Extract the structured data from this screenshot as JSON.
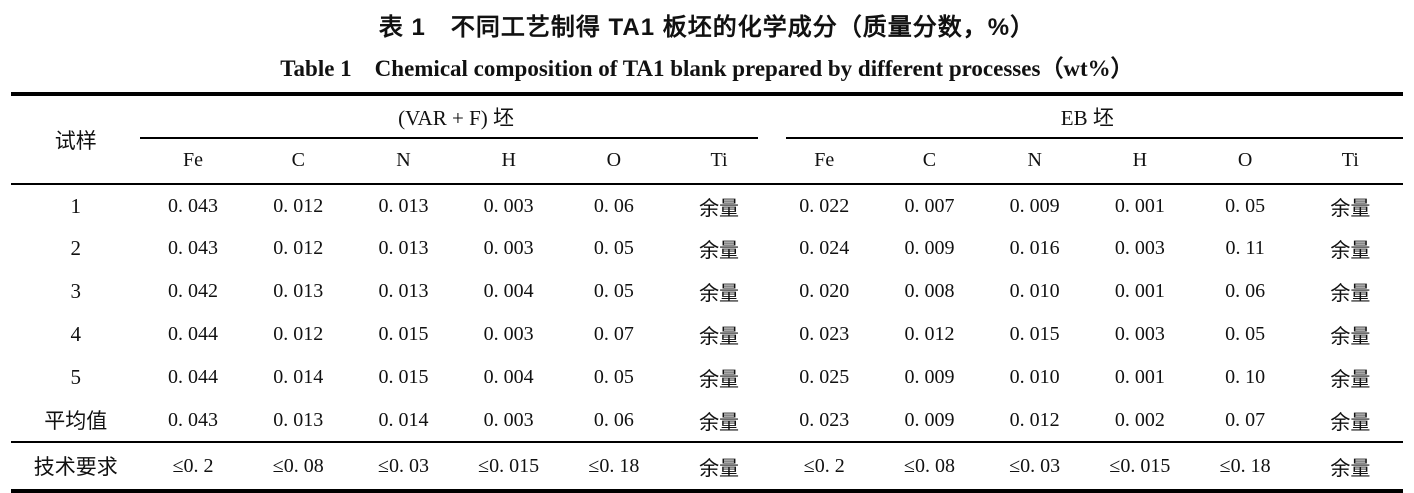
{
  "title": {
    "zh": "表 1　不同工艺制得 TA1 板坯的化学成分（质量分数，%）",
    "en": "Table 1　Chemical composition of TA1 blank prepared by different processes（wt%）"
  },
  "table": {
    "sample_header": "试样",
    "group_var_f": "(VAR + F) 坯",
    "group_eb": "EB 坯",
    "element_headers": [
      "Fe",
      "C",
      "N",
      "H",
      "O",
      "Ti"
    ],
    "rows": [
      {
        "cells": [
          "1",
          "0. 043",
          "0. 012",
          "0. 013",
          "0. 003",
          "0. 06",
          "余量",
          "0. 022",
          "0. 007",
          "0. 009",
          "0. 001",
          "0. 05",
          "余量"
        ]
      },
      {
        "cells": [
          "2",
          "0. 043",
          "0. 012",
          "0. 013",
          "0. 003",
          "0. 05",
          "余量",
          "0. 024",
          "0. 009",
          "0. 016",
          "0. 003",
          "0. 11",
          "余量"
        ]
      },
      {
        "cells": [
          "3",
          "0. 042",
          "0. 013",
          "0. 013",
          "0. 004",
          "0. 05",
          "余量",
          "0. 020",
          "0. 008",
          "0. 010",
          "0. 001",
          "0. 06",
          "余量"
        ]
      },
      {
        "cells": [
          "4",
          "0. 044",
          "0. 012",
          "0. 015",
          "0. 003",
          "0. 07",
          "余量",
          "0. 023",
          "0. 012",
          "0. 015",
          "0. 003",
          "0. 05",
          "余量"
        ]
      },
      {
        "cells": [
          "5",
          "0. 044",
          "0. 014",
          "0. 015",
          "0. 004",
          "0. 05",
          "余量",
          "0. 025",
          "0. 009",
          "0. 010",
          "0. 001",
          "0. 10",
          "余量"
        ]
      },
      {
        "cells": [
          "平均值",
          "0. 043",
          "0. 013",
          "0. 014",
          "0. 003",
          "0. 06",
          "余量",
          "0. 023",
          "0. 009",
          "0. 012",
          "0. 002",
          "0. 07",
          "余量"
        ]
      }
    ],
    "requirement_row": {
      "cells": [
        "技术要求",
        "≤0. 2",
        "≤0. 08",
        "≤0. 03",
        "≤0. 015",
        "≤0. 18",
        "余量",
        "≤0. 2",
        "≤0. 08",
        "≤0. 03",
        "≤0. 015",
        "≤0. 18",
        "余量"
      ]
    }
  }
}
